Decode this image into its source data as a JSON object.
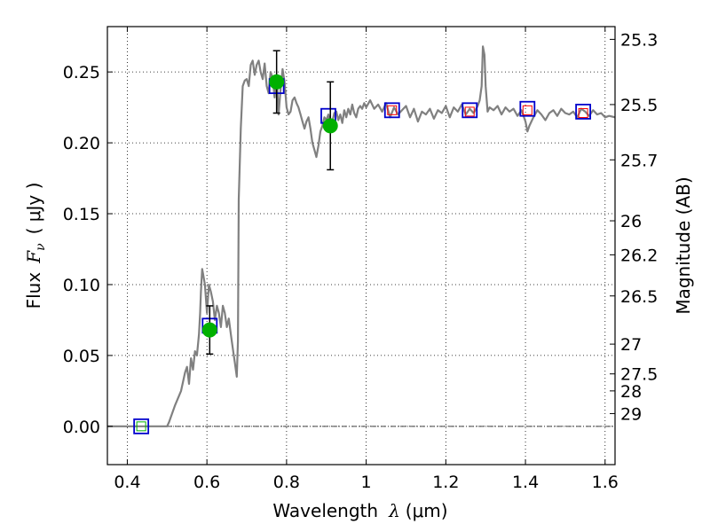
{
  "chart_data": {
    "type": "line",
    "title": "",
    "xlabel": {
      "prefix": "Wavelength",
      "symbol": "λ",
      "units": "(μm)"
    },
    "ylabel": {
      "prefix": "Flux",
      "symbol": "F",
      "subscript": "ν",
      "units": "( μJy )"
    },
    "ylabel_right": "Magnitude (AB)",
    "xlim": [
      0.35,
      1.625
    ],
    "ylim": [
      -0.027,
      0.282
    ],
    "grid": true,
    "x_ticks": [
      {
        "value": 0.4,
        "label": "0.4"
      },
      {
        "value": 0.6,
        "label": "0.6"
      },
      {
        "value": 0.8,
        "label": "0.8"
      },
      {
        "value": 1.0,
        "label": "1"
      },
      {
        "value": 1.2,
        "label": "1.2"
      },
      {
        "value": 1.4,
        "label": "1.4"
      },
      {
        "value": 1.6,
        "label": "1.6"
      }
    ],
    "y_ticks": [
      {
        "value": 0.0,
        "label": "0.00"
      },
      {
        "value": 0.05,
        "label": "0.05"
      },
      {
        "value": 0.1,
        "label": "0.10"
      },
      {
        "value": 0.15,
        "label": "0.15"
      },
      {
        "value": 0.2,
        "label": "0.20"
      },
      {
        "value": 0.25,
        "label": "0.25"
      }
    ],
    "magnitude_ticks": [
      {
        "flux": 0.273,
        "label": "25.3"
      },
      {
        "flux": 0.227,
        "label": "25.5"
      },
      {
        "flux": 0.188,
        "label": "25.7"
      },
      {
        "flux": 0.145,
        "label": "26"
      },
      {
        "flux": 0.121,
        "label": "26.2"
      },
      {
        "flux": 0.092,
        "label": "26.5"
      },
      {
        "flux": 0.058,
        "label": "27"
      },
      {
        "flux": 0.037,
        "label": "27.5"
      },
      {
        "flux": 0.025,
        "label": "28"
      },
      {
        "flux": 0.009,
        "label": "29"
      }
    ],
    "series": [
      {
        "kind": "model-spectrum",
        "color": "#808080",
        "x": [
          0.35,
          0.4,
          0.45,
          0.5,
          0.505,
          0.52,
          0.535,
          0.545,
          0.55,
          0.555,
          0.56,
          0.565,
          0.57,
          0.575,
          0.58,
          0.583,
          0.585,
          0.588,
          0.59,
          0.595,
          0.6,
          0.605,
          0.61,
          0.615,
          0.62,
          0.625,
          0.63,
          0.635,
          0.64,
          0.645,
          0.65,
          0.655,
          0.66,
          0.665,
          0.67,
          0.675,
          0.678,
          0.68,
          0.685,
          0.69,
          0.695,
          0.7,
          0.705,
          0.71,
          0.715,
          0.72,
          0.725,
          0.73,
          0.735,
          0.74,
          0.745,
          0.75,
          0.755,
          0.76,
          0.765,
          0.77,
          0.775,
          0.78,
          0.785,
          0.79,
          0.795,
          0.8,
          0.805,
          0.81,
          0.815,
          0.82,
          0.825,
          0.83,
          0.835,
          0.84,
          0.845,
          0.85,
          0.855,
          0.86,
          0.865,
          0.87,
          0.875,
          0.88,
          0.885,
          0.89,
          0.895,
          0.9,
          0.905,
          0.91,
          0.915,
          0.92,
          0.925,
          0.93,
          0.935,
          0.94,
          0.945,
          0.95,
          0.955,
          0.96,
          0.965,
          0.97,
          0.975,
          0.98,
          0.985,
          0.99,
          0.995,
          1.0,
          1.01,
          1.02,
          1.03,
          1.04,
          1.05,
          1.06,
          1.07,
          1.08,
          1.09,
          1.1,
          1.11,
          1.12,
          1.13,
          1.14,
          1.15,
          1.16,
          1.17,
          1.18,
          1.19,
          1.2,
          1.21,
          1.22,
          1.23,
          1.24,
          1.25,
          1.26,
          1.27,
          1.28,
          1.285,
          1.29,
          1.293,
          1.297,
          1.3,
          1.305,
          1.31,
          1.32,
          1.33,
          1.34,
          1.35,
          1.36,
          1.37,
          1.38,
          1.39,
          1.4,
          1.405,
          1.41,
          1.42,
          1.43,
          1.44,
          1.45,
          1.46,
          1.47,
          1.48,
          1.49,
          1.5,
          1.51,
          1.52,
          1.53,
          1.54,
          1.55,
          1.56,
          1.57,
          1.58,
          1.59,
          1.6,
          1.61,
          1.625
        ],
        "y": [
          0.0,
          0.0,
          0.0,
          0.0,
          0.003,
          0.015,
          0.025,
          0.038,
          0.042,
          0.03,
          0.048,
          0.04,
          0.053,
          0.05,
          0.065,
          0.08,
          0.095,
          0.111,
          0.108,
          0.1,
          0.08,
          0.1,
          0.095,
          0.088,
          0.075,
          0.085,
          0.08,
          0.07,
          0.085,
          0.08,
          0.07,
          0.076,
          0.065,
          0.055,
          0.045,
          0.035,
          0.06,
          0.16,
          0.21,
          0.24,
          0.244,
          0.245,
          0.24,
          0.255,
          0.258,
          0.248,
          0.255,
          0.258,
          0.25,
          0.245,
          0.256,
          0.24,
          0.235,
          0.25,
          0.246,
          0.232,
          0.248,
          0.22,
          0.238,
          0.252,
          0.243,
          0.225,
          0.22,
          0.222,
          0.23,
          0.232,
          0.228,
          0.225,
          0.22,
          0.215,
          0.21,
          0.215,
          0.218,
          0.21,
          0.2,
          0.195,
          0.19,
          0.198,
          0.208,
          0.212,
          0.218,
          0.216,
          0.22,
          0.213,
          0.215,
          0.221,
          0.222,
          0.216,
          0.22,
          0.214,
          0.223,
          0.218,
          0.224,
          0.22,
          0.227,
          0.221,
          0.218,
          0.224,
          0.226,
          0.224,
          0.228,
          0.225,
          0.23,
          0.224,
          0.227,
          0.222,
          0.228,
          0.218,
          0.225,
          0.22,
          0.223,
          0.226,
          0.218,
          0.224,
          0.215,
          0.222,
          0.22,
          0.224,
          0.217,
          0.223,
          0.221,
          0.226,
          0.218,
          0.225,
          0.222,
          0.227,
          0.22,
          0.224,
          0.221,
          0.226,
          0.23,
          0.24,
          0.268,
          0.262,
          0.24,
          0.222,
          0.225,
          0.223,
          0.226,
          0.22,
          0.225,
          0.222,
          0.224,
          0.219,
          0.223,
          0.215,
          0.208,
          0.212,
          0.218,
          0.223,
          0.22,
          0.216,
          0.221,
          0.223,
          0.219,
          0.224,
          0.221,
          0.22,
          0.222,
          0.218,
          0.224,
          0.222,
          0.219,
          0.223,
          0.22,
          0.221,
          0.218,
          0.219,
          0.218
        ]
      },
      {
        "kind": "observed-photometry",
        "marker": "circle",
        "color": "#00b000",
        "points": [
          {
            "x": 0.607,
            "y": 0.068,
            "err": 0.017
          },
          {
            "x": 0.775,
            "y": 0.243,
            "err": 0.022
          },
          {
            "x": 0.91,
            "y": 0.212,
            "err": 0.031
          }
        ]
      },
      {
        "kind": "model-photometry",
        "marker": "square",
        "color": "#0000cc",
        "points": [
          {
            "x": 0.435,
            "y": 0.0
          },
          {
            "x": 0.607,
            "y": 0.071
          },
          {
            "x": 0.775,
            "y": 0.24
          },
          {
            "x": 0.905,
            "y": 0.219
          },
          {
            "x": 1.065,
            "y": 0.223
          },
          {
            "x": 1.26,
            "y": 0.223
          },
          {
            "x": 1.405,
            "y": 0.224
          },
          {
            "x": 1.545,
            "y": 0.222
          }
        ]
      },
      {
        "kind": "upper-limit-photometry",
        "marker": "small-square",
        "colors": [
          "#00b000",
          "#ff0000",
          "#ff0000",
          "#ff0000",
          "#ff0000"
        ],
        "points": [
          {
            "x": 0.435,
            "y": 0.0
          },
          {
            "x": 1.065,
            "y": 0.223
          },
          {
            "x": 1.26,
            "y": 0.222
          },
          {
            "x": 1.405,
            "y": 0.223
          },
          {
            "x": 1.545,
            "y": 0.221
          }
        ]
      }
    ]
  }
}
